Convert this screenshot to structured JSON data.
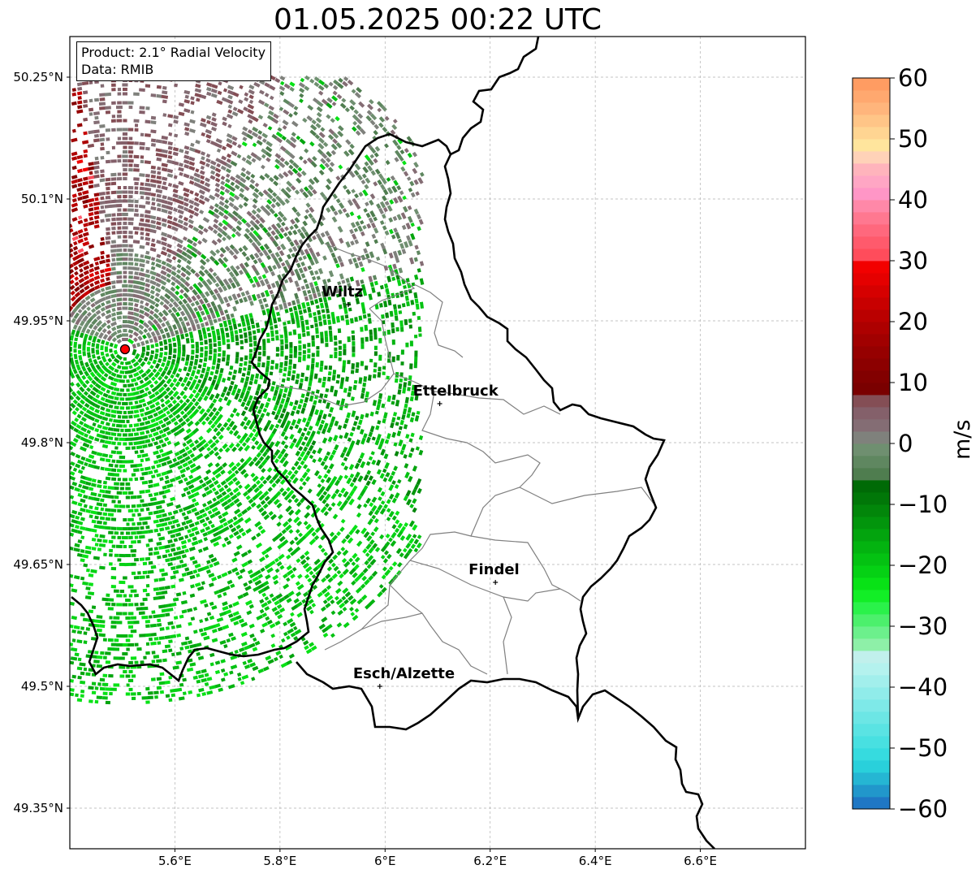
{
  "title": "01.05.2025 00:22 UTC",
  "info": {
    "product_line": "Product: 2.1° Radial Velocity",
    "data_line": "Data: RMIB"
  },
  "map": {
    "extent": {
      "lon_min": 5.4,
      "lon_max": 6.8,
      "lat_min": 49.3,
      "lat_max": 50.3
    },
    "gridlines": true,
    "lon_ticks": [
      {
        "value": 5.6,
        "label": "5.6°E"
      },
      {
        "value": 5.8,
        "label": "5.8°E"
      },
      {
        "value": 6.0,
        "label": "6°E"
      },
      {
        "value": 6.2,
        "label": "6.2°E"
      },
      {
        "value": 6.4,
        "label": "6.4°E"
      },
      {
        "value": 6.6,
        "label": "6.6°E"
      }
    ],
    "lat_ticks": [
      {
        "value": 50.25,
        "label": "50.25°N"
      },
      {
        "value": 50.1,
        "label": "50.1°N"
      },
      {
        "value": 49.95,
        "label": "49.95°N"
      },
      {
        "value": 49.8,
        "label": "49.8°N"
      },
      {
        "value": 49.65,
        "label": "49.65°N"
      },
      {
        "value": 49.5,
        "label": "49.5°N"
      },
      {
        "value": 49.35,
        "label": "49.35°N"
      }
    ],
    "radar_site": {
      "lon": 5.505,
      "lat": 49.915,
      "color": "#ff0000"
    },
    "cities": [
      {
        "name": "Wiltz",
        "lon": 5.93,
        "lat": 49.97
      },
      {
        "name": "Ettelbruck",
        "lon": 6.104,
        "lat": 49.848
      },
      {
        "name": "Findel",
        "lon": 6.21,
        "lat": 49.628
      },
      {
        "name": "Esch/Alzette",
        "lon": 5.99,
        "lat": 49.5
      }
    ]
  },
  "colorbar": {
    "label": "m/s",
    "min": -60,
    "max": 60,
    "ticks": [
      {
        "value": 60,
        "label": "60"
      },
      {
        "value": 50,
        "label": "50"
      },
      {
        "value": 40,
        "label": "40"
      },
      {
        "value": 30,
        "label": "30"
      },
      {
        "value": 20,
        "label": "20"
      },
      {
        "value": 10,
        "label": "10"
      },
      {
        "value": 0,
        "label": "0"
      },
      {
        "value": -10,
        "label": "−10"
      },
      {
        "value": -20,
        "label": "−20"
      },
      {
        "value": -30,
        "label": "−30"
      },
      {
        "value": -40,
        "label": "−40"
      },
      {
        "value": -50,
        "label": "−50"
      },
      {
        "value": -60,
        "label": "−60"
      }
    ],
    "segments": [
      {
        "from": -60,
        "to": -58,
        "color": "#1f77c4"
      },
      {
        "from": -58,
        "to": -56,
        "color": "#2197cb"
      },
      {
        "from": -56,
        "to": -54,
        "color": "#25b6d3"
      },
      {
        "from": -54,
        "to": -52,
        "color": "#29d0db"
      },
      {
        "from": -52,
        "to": -50,
        "color": "#36dbdf"
      },
      {
        "from": -50,
        "to": -48,
        "color": "#48e0e1"
      },
      {
        "from": -48,
        "to": -46,
        "color": "#5ae3e3"
      },
      {
        "from": -46,
        "to": -44,
        "color": "#6ce6e5"
      },
      {
        "from": -44,
        "to": -42,
        "color": "#7ee9e8"
      },
      {
        "from": -42,
        "to": -40,
        "color": "#90ecea"
      },
      {
        "from": -40,
        "to": -38,
        "color": "#a2efec"
      },
      {
        "from": -38,
        "to": -36,
        "color": "#b4f2ee"
      },
      {
        "from": -36,
        "to": -34,
        "color": "#c1f0ec"
      },
      {
        "from": -34,
        "to": -32,
        "color": "#8ef0a8"
      },
      {
        "from": -32,
        "to": -30,
        "color": "#6cf08c"
      },
      {
        "from": -30,
        "to": -28,
        "color": "#4cf06c"
      },
      {
        "from": -28,
        "to": -26,
        "color": "#2af24a"
      },
      {
        "from": -26,
        "to": -24,
        "color": "#12ee26"
      },
      {
        "from": -24,
        "to": -22,
        "color": "#08e216"
      },
      {
        "from": -22,
        "to": -20,
        "color": "#05d114"
      },
      {
        "from": -20,
        "to": -18,
        "color": "#04c212"
      },
      {
        "from": -18,
        "to": -16,
        "color": "#03b310"
      },
      {
        "from": -16,
        "to": -14,
        "color": "#03a40e"
      },
      {
        "from": -14,
        "to": -12,
        "color": "#02950c"
      },
      {
        "from": -12,
        "to": -10,
        "color": "#02860a"
      },
      {
        "from": -10,
        "to": -8,
        "color": "#017708"
      },
      {
        "from": -8,
        "to": -6,
        "color": "#006a06"
      },
      {
        "from": -6,
        "to": -4,
        "color": "#4f7d4f"
      },
      {
        "from": -4,
        "to": -2,
        "color": "#5f8760"
      },
      {
        "from": -2,
        "to": 0,
        "color": "#6f8f70"
      },
      {
        "from": 0,
        "to": 2,
        "color": "#7f817c"
      },
      {
        "from": 2,
        "to": 4,
        "color": "#846d74"
      },
      {
        "from": 4,
        "to": 6,
        "color": "#84606a"
      },
      {
        "from": 6,
        "to": 8,
        "color": "#844e55"
      },
      {
        "from": 8,
        "to": 10,
        "color": "#7a0000"
      },
      {
        "from": 10,
        "to": 12,
        "color": "#820000"
      },
      {
        "from": 12,
        "to": 14,
        "color": "#8c0000"
      },
      {
        "from": 14,
        "to": 16,
        "color": "#960000"
      },
      {
        "from": 16,
        "to": 18,
        "color": "#a10000"
      },
      {
        "from": 18,
        "to": 20,
        "color": "#ad0000"
      },
      {
        "from": 20,
        "to": 22,
        "color": "#ba0000"
      },
      {
        "from": 22,
        "to": 24,
        "color": "#c80000"
      },
      {
        "from": 24,
        "to": 26,
        "color": "#d60000"
      },
      {
        "from": 26,
        "to": 28,
        "color": "#e50000"
      },
      {
        "from": 28,
        "to": 30,
        "color": "#f20000"
      },
      {
        "from": 30,
        "to": 32,
        "color": "#ff4c5b"
      },
      {
        "from": 32,
        "to": 34,
        "color": "#ff5a6c"
      },
      {
        "from": 34,
        "to": 36,
        "color": "#ff687d"
      },
      {
        "from": 36,
        "to": 38,
        "color": "#ff7890"
      },
      {
        "from": 38,
        "to": 40,
        "color": "#ff88a8"
      },
      {
        "from": 40,
        "to": 42,
        "color": "#ff96c6"
      },
      {
        "from": 42,
        "to": 44,
        "color": "#ffa6c4"
      },
      {
        "from": 44,
        "to": 46,
        "color": "#ffb4bc"
      },
      {
        "from": 46,
        "to": 48,
        "color": "#ffd2b8"
      },
      {
        "from": 48,
        "to": 50,
        "color": "#ffe59d"
      },
      {
        "from": 50,
        "to": 52,
        "color": "#ffd592"
      },
      {
        "from": 52,
        "to": 54,
        "color": "#ffc587"
      },
      {
        "from": 54,
        "to": 56,
        "color": "#ffb57c"
      },
      {
        "from": 56,
        "to": 58,
        "color": "#ffa86f"
      },
      {
        "from": 58,
        "to": 60,
        "color": "#ff9c62"
      }
    ]
  }
}
